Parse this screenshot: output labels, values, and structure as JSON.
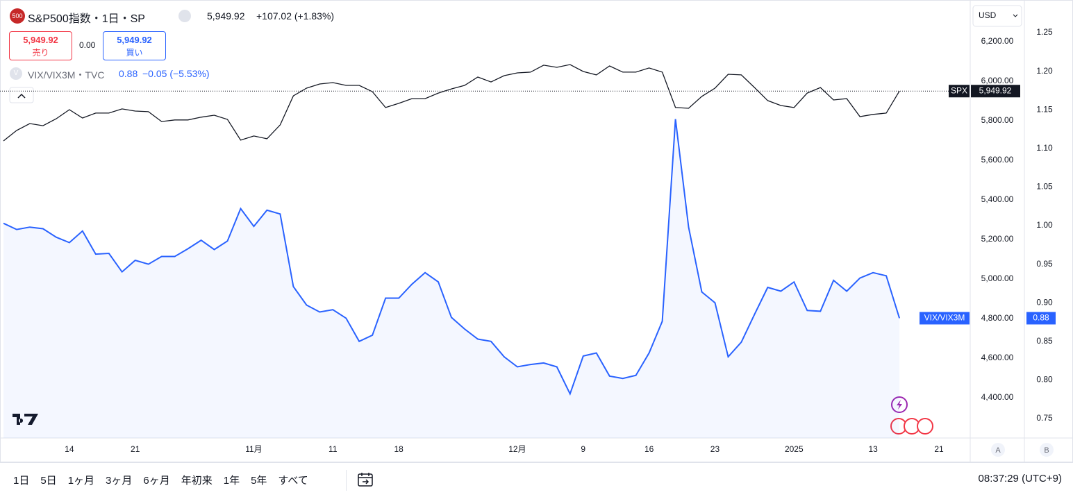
{
  "header": {
    "badge": "500",
    "symbol": "S&P500指数・1日・SP",
    "price": "5,949.92",
    "change": "+107.02 (+1.83%)",
    "sell_price": "5,949.92",
    "sell_label": "売り",
    "spread": "0.00",
    "buy_price": "5,949.92",
    "buy_label": "買い",
    "overlay_badge": "V",
    "overlay_symbol": "VIX/VIX3M・TVC",
    "overlay_price": "0.88",
    "overlay_change": "−0.05 (−5.53%)",
    "currency": "USD"
  },
  "chart_data": {
    "type": "line",
    "grid": false,
    "categories": [
      null,
      null,
      null,
      null,
      null,
      "14",
      null,
      null,
      null,
      null,
      "21",
      null,
      null,
      null,
      null,
      null,
      null,
      null,
      null,
      "11月",
      null,
      null,
      null,
      null,
      null,
      "11",
      null,
      null,
      null,
      null,
      "18",
      null,
      null,
      null,
      null,
      null,
      null,
      null,
      null,
      "12月",
      null,
      null,
      null,
      null,
      "9",
      null,
      null,
      null,
      null,
      "16",
      null,
      null,
      null,
      null,
      "23",
      null,
      null,
      null,
      null,
      null,
      "2025",
      null,
      null,
      null,
      null,
      null,
      "13",
      null,
      null,
      null,
      null,
      "21"
    ],
    "ylim": [
      4196,
      6393
    ],
    "yticks": [
      {
        "value": 4400,
        "label": "4,400.00"
      },
      {
        "value": 4600,
        "label": "4,600.00"
      },
      {
        "value": 4800,
        "label": "4,800.00"
      },
      {
        "value": 5000,
        "label": "5,000.00"
      },
      {
        "value": 5200,
        "label": "5,200.00"
      },
      {
        "value": 5400,
        "label": "5,400.00"
      },
      {
        "value": 5600,
        "label": "5,600.00"
      },
      {
        "value": 5800,
        "label": "5,800.00"
      },
      {
        "value": 6000,
        "label": "6,000.00"
      },
      {
        "value": 6200,
        "label": "6,200.00"
      }
    ],
    "y2lim": [
      0.7248,
      1.2878
    ],
    "y2ticks": [
      0.75,
      {
        "value": 0.8,
        "label": "0.80"
      },
      0.85,
      {
        "value": 0.9,
        "label": "0.90"
      },
      0.95,
      {
        "value": 1.0,
        "label": "1.00"
      },
      1.05,
      {
        "value": 1.1,
        "label": "1.10"
      },
      1.15,
      {
        "value": 1.2,
        "label": "1.20"
      },
      1.25
    ],
    "series": [
      {
        "name": "SPX",
        "color": "#131722",
        "axis": "y",
        "last_label": "5,949.92",
        "values": [
          5698,
          5751,
          5786,
          5775,
          5810,
          5856,
          5814,
          5839,
          5839,
          5860,
          5849,
          5846,
          5796,
          5804,
          5804,
          5818,
          5828,
          5807,
          5702,
          5723,
          5709,
          5779,
          5926,
          5965,
          5986,
          5993,
          5979,
          5979,
          5947,
          5867,
          5888,
          5912,
          5912,
          5940,
          5961,
          5979,
          6021,
          5996,
          6028,
          6042,
          6046,
          6081,
          6070,
          6084,
          6049,
          6032,
          6077,
          6046,
          6046,
          6067,
          6046,
          5867,
          5863,
          5923,
          5965,
          6035,
          6032,
          5968,
          5902,
          5877,
          5867,
          5940,
          5968,
          5905,
          5912,
          5821,
          5832,
          5839,
          5949.92,
          null,
          null,
          null
        ]
      },
      {
        "name": "VIX/VIX3M",
        "color": "#2962ff",
        "axis": "y2",
        "last_label": "0.88",
        "values": [
          1.003,
          0.995,
          0.998,
          0.996,
          0.985,
          0.978,
          0.993,
          0.963,
          0.964,
          0.94,
          0.955,
          0.95,
          0.96,
          0.96,
          0.97,
          0.981,
          0.969,
          0.98,
          1.022,
          0.999,
          1.02,
          1.015,
          0.921,
          0.897,
          0.888,
          0.891,
          0.88,
          0.85,
          0.858,
          0.906,
          0.906,
          0.924,
          0.939,
          0.927,
          0.881,
          0.866,
          0.853,
          0.85,
          0.83,
          0.817,
          0.82,
          0.822,
          0.817,
          0.782,
          0.831,
          0.835,
          0.805,
          0.802,
          0.806,
          0.835,
          0.876,
          1.138,
          0.998,
          0.914,
          0.9,
          0.83,
          0.849,
          0.885,
          0.92,
          0.915,
          0.927,
          0.89,
          0.889,
          0.929,
          0.915,
          0.932,
          0.939,
          0.935,
          0.88,
          null,
          null,
          null
        ]
      }
    ]
  },
  "axis_buttons": [
    "A",
    "B"
  ],
  "toolbar": {
    "periods": [
      "1日",
      "5日",
      "1ヶ月",
      "3ヶ月",
      "6ヶ月",
      "年初来",
      "1年",
      "5年",
      "すべて"
    ],
    "clock": "08:37:29 (UTC+9)"
  }
}
